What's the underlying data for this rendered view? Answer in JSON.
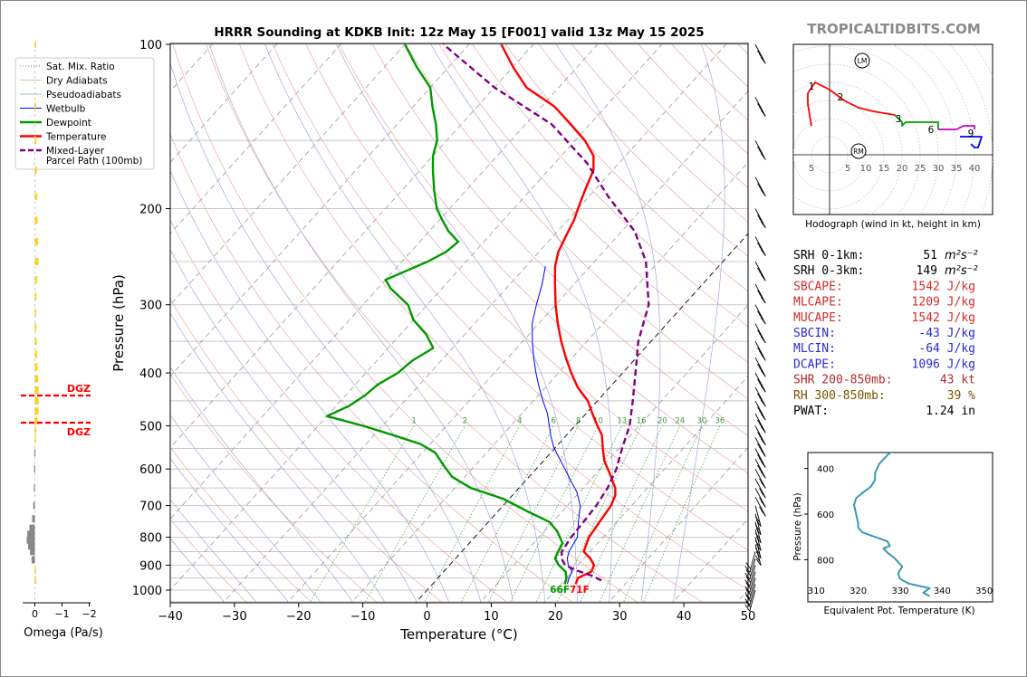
{
  "title": "HRRR Sounding at KDKB Init: 12z May 15 [F001] valid 13z May 15 2025",
  "watermark": "TROPICALTIDBITS.COM",
  "skewt": {
    "xlabel": "Temperature (°C)",
    "ylabel": "Pressure (hPa)",
    "xticks": [
      "−40",
      "−30",
      "−20",
      "−10",
      "0",
      "10",
      "20",
      "30",
      "40",
      "50"
    ],
    "yticks": [
      "100",
      "200",
      "300",
      "400",
      "500",
      "600",
      "700",
      "800",
      "900",
      "1000"
    ],
    "surface_label": "66F71F",
    "legend": [
      "Sat. Mix. Ratio",
      "Dry Adiabats",
      "Pseudoadiabats",
      "Wetbulb",
      "Dewpoint",
      "Temperature",
      "Mixed-Layer\nParcel Path (100mb)"
    ],
    "mixing_ratio_labels": [
      "1",
      "2",
      "4",
      "6",
      "8",
      "10",
      "13",
      "16",
      "20",
      "24",
      "30",
      "36"
    ]
  },
  "omega": {
    "xlabel": "Omega (Pa/s)",
    "xticks": [
      "0",
      "−1",
      "−2"
    ],
    "dgz_label": "DGZ"
  },
  "hodograph": {
    "caption": "Hodograph (wind in kt, height in km)",
    "ring_labels": [
      "5",
      "5",
      "10",
      "15",
      "20",
      "25",
      "30",
      "35",
      "40"
    ],
    "height_labels": [
      "1",
      "2",
      "3",
      "6",
      "9"
    ],
    "markers": [
      "LM",
      "RM"
    ]
  },
  "indices": [
    {
      "label": "SRH 0-1km:",
      "value": "51",
      "unit": "m²s⁻²",
      "color": "#000000"
    },
    {
      "label": "SRH 0-3km:",
      "value": "149",
      "unit": "m²s⁻²",
      "color": "#000000"
    },
    {
      "label": "SBCAPE:",
      "value": "1542 J/kg",
      "unit": "",
      "color": "#d42a2a"
    },
    {
      "label": "MLCAPE:",
      "value": "1209 J/kg",
      "unit": "",
      "color": "#d42a2a"
    },
    {
      "label": "MUCAPE:",
      "value": "1542 J/kg",
      "unit": "",
      "color": "#d42a2a"
    },
    {
      "label": "SBCIN:",
      "value": "-43 J/kg",
      "unit": "",
      "color": "#2a2ad4"
    },
    {
      "label": "MLCIN:",
      "value": "-64 J/kg",
      "unit": "",
      "color": "#2a2ad4"
    },
    {
      "label": "DCAPE:",
      "value": "1096 J/kg",
      "unit": "",
      "color": "#2a2ad4"
    },
    {
      "label": "SHR 200-850mb:",
      "value": "43 kt",
      "unit": "",
      "color": "#b02a2a"
    },
    {
      "label": "RH 300-850mb:",
      "value": "39 %",
      "unit": "",
      "color": "#7a5500"
    },
    {
      "label": "PWAT:",
      "value": "1.24 in",
      "unit": "",
      "color": "#000000"
    }
  ],
  "theta_e": {
    "xlabel": "Equivalent Pot. Temperature (K)",
    "ylabel": "Pressure (hPa)",
    "xticks": [
      "310",
      "320",
      "330",
      "340",
      "350"
    ],
    "yticks": [
      "400",
      "600",
      "800"
    ]
  },
  "chart_data": [
    {
      "type": "line",
      "name": "skew-t",
      "xlim": [
        -40,
        50
      ],
      "ylim": [
        1050,
        100
      ],
      "log_y": true,
      "series": [
        {
          "name": "Temperature",
          "color": "#ff0000",
          "points": [
            [
              22.3,
              975
            ],
            [
              21.8,
              950
            ],
            [
              23.0,
              925
            ],
            [
              22.5,
              900
            ],
            [
              21.0,
              875
            ],
            [
              19.0,
              850
            ],
            [
              17.8,
              800
            ],
            [
              17.3,
              750
            ],
            [
              16.8,
              700
            ],
            [
              16.0,
              670
            ],
            [
              15.0,
              650
            ],
            [
              13.5,
              630
            ],
            [
              12.0,
              610
            ],
            [
              9.5,
              580
            ],
            [
              7.5,
              550
            ],
            [
              5.5,
              520
            ],
            [
              3.5,
              500
            ],
            [
              1.0,
              475
            ],
            [
              -1.5,
              450
            ],
            [
              -5.0,
              425
            ],
            [
              -8.0,
              400
            ],
            [
              -11.0,
              375
            ],
            [
              -14.0,
              350
            ],
            [
              -17.0,
              325
            ],
            [
              -20.0,
              300
            ],
            [
              -23.0,
              275
            ],
            [
              -25.5,
              255
            ],
            [
              -27.0,
              240
            ],
            [
              -28.0,
              225
            ],
            [
              -29.0,
              210
            ],
            [
              -30.0,
              200
            ],
            [
              -31.5,
              185
            ],
            [
              -33.0,
              170
            ],
            [
              -35.0,
              160
            ],
            [
              -38.5,
              150
            ],
            [
              -43.0,
              140
            ],
            [
              -48.0,
              130
            ],
            [
              -55.0,
              120
            ],
            [
              -60.0,
              110
            ],
            [
              -65.0,
              100
            ]
          ]
        },
        {
          "name": "Dewpoint",
          "color": "#009900",
          "points": [
            [
              20.6,
              975
            ],
            [
              20.0,
              950
            ],
            [
              19.0,
              925
            ],
            [
              17.0,
              900
            ],
            [
              15.5,
              875
            ],
            [
              15.0,
              850
            ],
            [
              14.5,
              820
            ],
            [
              12.0,
              780
            ],
            [
              9.5,
              750
            ],
            [
              5.0,
              720
            ],
            [
              -1.0,
              680
            ],
            [
              -7.5,
              650
            ],
            [
              -12.0,
              620
            ],
            [
              -15.0,
              590
            ],
            [
              -18.0,
              560
            ],
            [
              -21.5,
              540
            ],
            [
              -27.0,
              520
            ],
            [
              -33.0,
              500
            ],
            [
              -40.0,
              480
            ],
            [
              -38.0,
              460
            ],
            [
              -37.0,
              440
            ],
            [
              -36.5,
              420
            ],
            [
              -35.0,
              400
            ],
            [
              -34.5,
              380
            ],
            [
              -33.0,
              360
            ],
            [
              -36.0,
              340
            ],
            [
              -40.0,
              320
            ],
            [
              -43.0,
              300
            ],
            [
              -48.0,
              280
            ],
            [
              -50.0,
              270
            ],
            [
              -48.0,
              260
            ],
            [
              -46.0,
              250
            ],
            [
              -44.5,
              240
            ],
            [
              -44.0,
              230
            ],
            [
              -47.0,
              220
            ],
            [
              -49.5,
              210
            ],
            [
              -52.0,
              200
            ],
            [
              -55.0,
              185
            ],
            [
              -58.0,
              170
            ],
            [
              -60.0,
              160
            ],
            [
              -61.5,
              150
            ],
            [
              -64.0,
              140
            ],
            [
              -67.0,
              130
            ],
            [
              -70.0,
              120
            ],
            [
              -75.0,
              110
            ],
            [
              -80.0,
              100
            ]
          ]
        },
        {
          "name": "Wetbulb",
          "color": "#0000ff",
          "points": [
            [
              21.0,
              975
            ],
            [
              20.4,
              950
            ],
            [
              20.0,
              925
            ],
            [
              18.5,
              900
            ],
            [
              17.4,
              875
            ],
            [
              16.7,
              850
            ],
            [
              16.0,
              800
            ],
            [
              14.0,
              750
            ],
            [
              12.0,
              700
            ],
            [
              9.5,
              660
            ],
            [
              7.0,
              630
            ],
            [
              4.5,
              600
            ],
            [
              1.8,
              570
            ],
            [
              -0.5,
              545
            ],
            [
              -2.5,
              520
            ],
            [
              -4.0,
              500
            ],
            [
              -6.0,
              475
            ],
            [
              -8.5,
              450
            ],
            [
              -11.0,
              425
            ],
            [
              -13.5,
              400
            ],
            [
              -16.0,
              375
            ],
            [
              -18.5,
              350
            ],
            [
              -21.0,
              325
            ],
            [
              -23.0,
              300
            ],
            [
              -25.0,
              275
            ],
            [
              -27.0,
              255
            ]
          ]
        },
        {
          "name": "Mixed-Layer Parcel Path (100mb)",
          "color": "#800080",
          "dash": true,
          "points": [
            [
              25.8,
              960
            ],
            [
              23.5,
              940
            ],
            [
              20.5,
              920
            ],
            [
              18.0,
              900
            ],
            [
              16.5,
              875
            ],
            [
              15.6,
              850
            ],
            [
              15.0,
              800
            ],
            [
              14.8,
              750
            ],
            [
              14.5,
              700
            ],
            [
              13.8,
              650
            ],
            [
              12.5,
              600
            ],
            [
              10.5,
              550
            ],
            [
              8.5,
              500
            ],
            [
              5.5,
              450
            ],
            [
              2.0,
              400
            ],
            [
              -2.0,
              350
            ],
            [
              -5.5,
              300
            ],
            [
              -12.0,
              250
            ],
            [
              -18.0,
              220
            ],
            [
              -27.0,
              190
            ],
            [
              -35.0,
              165
            ],
            [
              -46.0,
              140
            ],
            [
              -60.0,
              120
            ],
            [
              -74.0,
              100
            ]
          ]
        }
      ]
    },
    {
      "type": "line",
      "name": "hodograph",
      "xlim": [
        -10,
        45
      ],
      "ylim": [
        -17,
        31
      ],
      "series": [
        {
          "name": "0-3 km",
          "color": "#ff0000",
          "points": [
            [
              -5,
              8
            ],
            [
              -6,
              14
            ],
            [
              -6,
              17
            ],
            [
              -4,
              20
            ],
            [
              0,
              18
            ],
            [
              4,
              15
            ],
            [
              8,
              13
            ],
            [
              12,
              12
            ],
            [
              18,
              11
            ]
          ]
        },
        {
          "name": "3-6 km",
          "color": "#00a000",
          "points": [
            [
              18,
              11
            ],
            [
              20,
              9
            ],
            [
              20,
              8
            ],
            [
              21,
              9
            ],
            [
              24,
              9
            ],
            [
              27,
              9
            ],
            [
              30,
              9
            ],
            [
              30,
              7
            ]
          ]
        },
        {
          "name": "6-9 km",
          "color": "#c000c0",
          "points": [
            [
              30,
              7
            ],
            [
              35,
              7
            ],
            [
              37,
              8
            ],
            [
              40,
              8
            ],
            [
              40,
              7
            ]
          ]
        },
        {
          "name": "9+ km",
          "color": "#0000ff",
          "points": [
            [
              36,
              5
            ],
            [
              39,
              5
            ],
            [
              42,
              5
            ],
            [
              41,
              2
            ],
            [
              40,
              2
            ],
            [
              39,
              3
            ]
          ]
        }
      ],
      "lm": [
        9,
        26
      ],
      "rm": [
        8,
        1
      ]
    },
    {
      "type": "line",
      "name": "theta-e",
      "xlim": [
        310,
        350
      ],
      "ylim": [
        975,
        300
      ],
      "series": [
        {
          "name": "theta-e",
          "color": "#3a99b3",
          "points": [
            [
              337.0,
              960
            ],
            [
              335.5,
              945
            ],
            [
              337.0,
              925
            ],
            [
              332.0,
              905
            ],
            [
              330.0,
              885
            ],
            [
              329.5,
              860
            ],
            [
              330.5,
              830
            ],
            [
              329.0,
              800
            ],
            [
              328.5,
              790
            ],
            [
              327.0,
              770
            ],
            [
              326.0,
              750
            ],
            [
              327.5,
              740
            ],
            [
              327.0,
              720
            ],
            [
              324.0,
              700
            ],
            [
              321.0,
              680
            ],
            [
              320.0,
              660
            ],
            [
              320.0,
              640
            ],
            [
              319.5,
              600
            ],
            [
              319.0,
              560
            ],
            [
              319.5,
              530
            ],
            [
              321.5,
              500
            ],
            [
              323.0,
              480
            ],
            [
              324.0,
              450
            ],
            [
              324.0,
              420
            ],
            [
              324.5,
              400
            ],
            [
              325.0,
              380
            ],
            [
              326.0,
              360
            ],
            [
              327.0,
              340
            ],
            [
              328.5,
              320
            ],
            [
              329.5,
              305
            ]
          ]
        }
      ]
    },
    {
      "type": "bar",
      "name": "omega",
      "xlim": [
        0.3,
        -2.6
      ],
      "ylim": [
        1040,
        100
      ],
      "values_by_pressure": [
        [
          100,
          0.05
        ],
        [
          130,
          0.05
        ],
        [
          150,
          0.06
        ],
        [
          170,
          0.07
        ],
        [
          190,
          0.08
        ],
        [
          210,
          0.1
        ],
        [
          230,
          0.12
        ],
        [
          250,
          0.13
        ],
        [
          270,
          0.08
        ],
        [
          290,
          0.06
        ],
        [
          310,
          0.05
        ],
        [
          330,
          0.06
        ],
        [
          350,
          0.07
        ],
        [
          370,
          0.08
        ],
        [
          390,
          0.1
        ],
        [
          410,
          0.12
        ],
        [
          430,
          0.14
        ],
        [
          450,
          0.14
        ],
        [
          470,
          0.13
        ],
        [
          490,
          0.1
        ],
        [
          510,
          0.05
        ],
        [
          530,
          0.02
        ],
        [
          560,
          -0.02
        ],
        [
          600,
          -0.03
        ],
        [
          650,
          -0.04
        ],
        [
          700,
          -0.06
        ],
        [
          740,
          -0.1
        ],
        [
          770,
          -0.2
        ],
        [
          790,
          -0.28
        ],
        [
          810,
          -0.3
        ],
        [
          830,
          -0.25
        ],
        [
          850,
          -0.18
        ],
        [
          880,
          -0.12
        ],
        [
          920,
          0.02
        ],
        [
          960,
          0.05
        ]
      ]
    }
  ]
}
